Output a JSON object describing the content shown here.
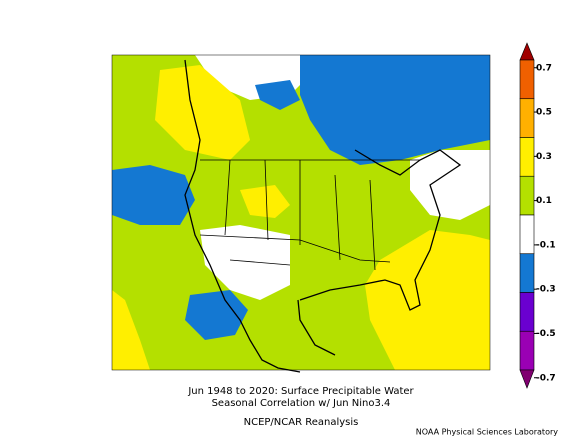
{
  "caption": [
    "Jun 1948 to 2020: Surface Precipitable Water",
    "Seasonal Correlation w/ Jun Nino3.4"
  ],
  "source": "NCEP/NCAR Reanalysis",
  "credit": "NOAA Physical Sciences Laboratory",
  "colorbar": {
    "ticks": [
      0.7,
      0.5,
      0.3,
      0.1,
      -0.1,
      -0.3,
      -0.5,
      -0.7
    ],
    "colors": [
      "#a00000",
      "#f06000",
      "#ffb000",
      "#ffef00",
      "#b4e000",
      "#ffffff",
      "#1478d2",
      "#6a00d0",
      "#9a00b4",
      "#800070"
    ]
  }
}
